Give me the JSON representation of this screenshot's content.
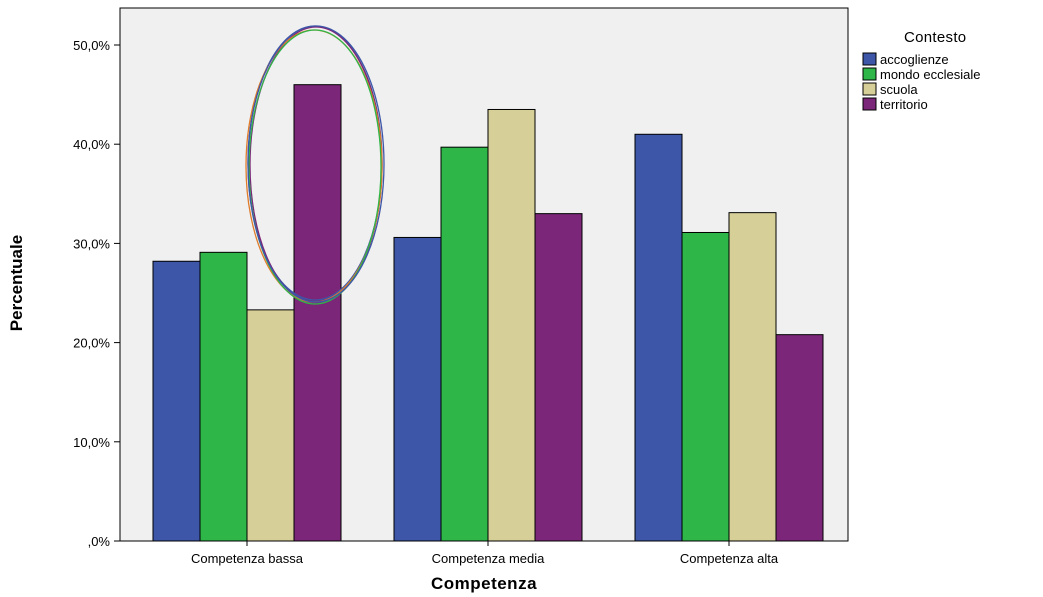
{
  "chart_data": {
    "type": "bar",
    "categories": [
      "Competenza bassa",
      "Competenza media",
      "Competenza alta"
    ],
    "series": [
      {
        "name": "accoglienze",
        "color": "#3d56a8",
        "values": [
          28.2,
          30.6,
          41.0
        ]
      },
      {
        "name": "mondo ecclesiale",
        "color": "#2eb648",
        "values": [
          29.1,
          39.7,
          31.1
        ]
      },
      {
        "name": "scuola",
        "color": "#d6cf98",
        "values": [
          23.3,
          43.5,
          33.1
        ]
      },
      {
        "name": "territorio",
        "color": "#7b2678",
        "values": [
          46.0,
          33.0,
          20.8
        ]
      }
    ],
    "xlabel": "Competenza",
    "ylabel": "Percentuale",
    "ylim": [
      0,
      50
    ],
    "yticks": [
      0,
      10,
      20,
      30,
      40,
      50
    ],
    "ytick_labels": [
      ",0%",
      "10,0%",
      "20,0%",
      "30,0%",
      "40,0%",
      "50,0%"
    ],
    "legend_title": "Contesto",
    "legend_position": "top-right",
    "grid": false,
    "plot_background": "#f0f0f0",
    "annotation": {
      "type": "ellipse",
      "target": "Competenza bassa / territorio"
    }
  }
}
